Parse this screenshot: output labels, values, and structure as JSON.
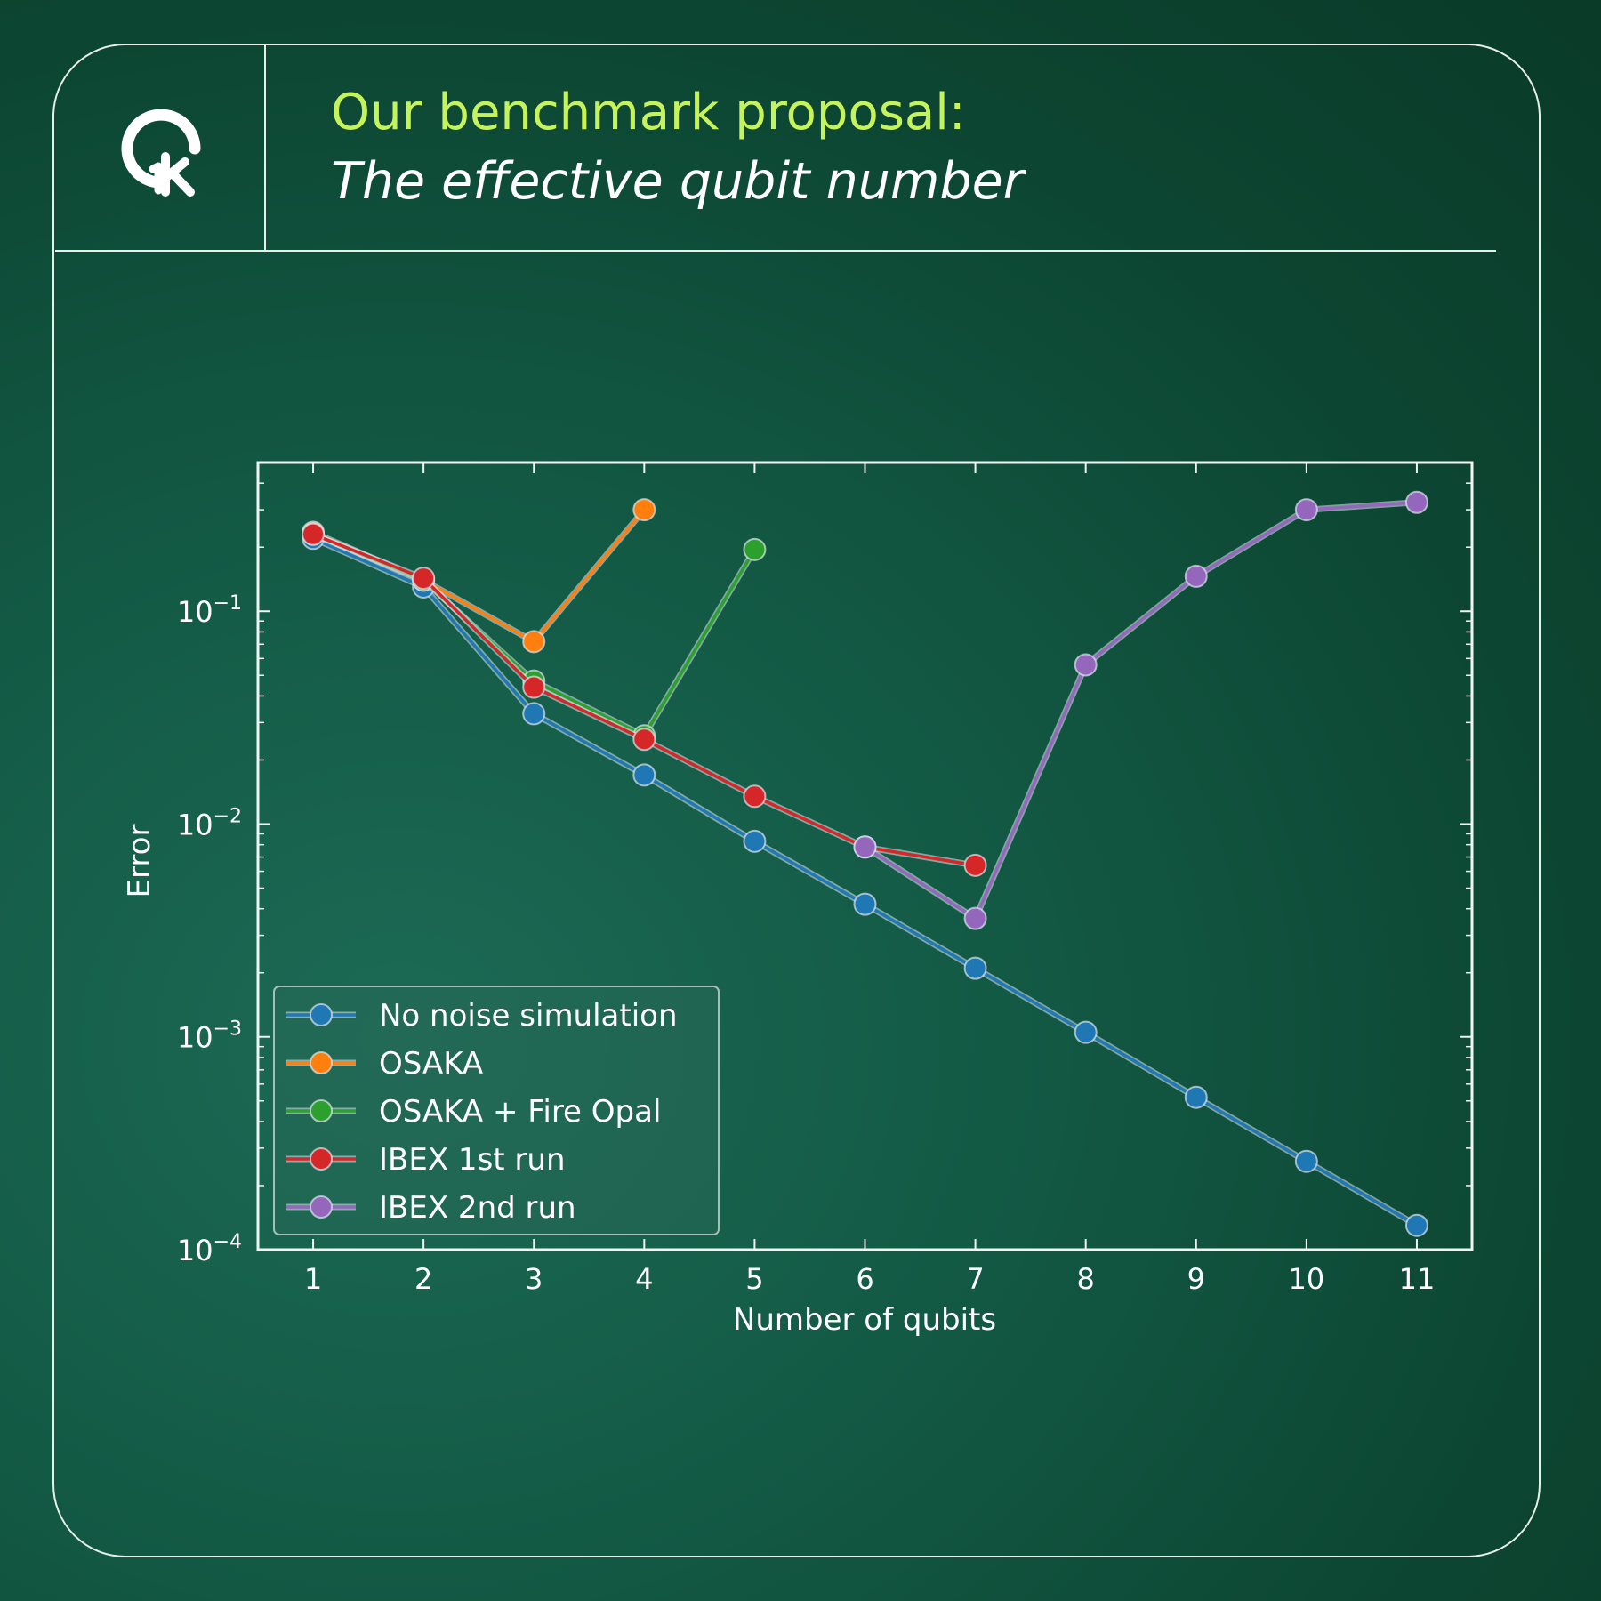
{
  "header": {
    "title": "Our benchmark proposal:",
    "subtitle": "The effective qubit number",
    "logo_icon": "qk-logo-icon"
  },
  "colors": {
    "title": "#c6f25a",
    "frame": "#e8efe9"
  },
  "chart_data": {
    "type": "line",
    "xlabel": "Number of qubits",
    "ylabel": "Error",
    "yscale": "log",
    "xlim": [
      0.5,
      11.5
    ],
    "ylim": [
      0.0001,
      0.5
    ],
    "x_ticks": [
      1,
      2,
      3,
      4,
      5,
      6,
      7,
      8,
      9,
      10,
      11
    ],
    "y_ticks": [
      {
        "value": 0.1,
        "base": "10",
        "exp": "−1"
      },
      {
        "value": 0.01,
        "base": "10",
        "exp": "−2"
      },
      {
        "value": 0.001,
        "base": "10",
        "exp": "−3"
      },
      {
        "value": 0.0001,
        "base": "10",
        "exp": "−4"
      }
    ],
    "legend_position": "lower-left",
    "series": [
      {
        "name": "No noise simulation",
        "color": "#1f77b4",
        "x": [
          1,
          2,
          3,
          4,
          5,
          6,
          7,
          8,
          9,
          10,
          11
        ],
        "y": [
          0.22,
          0.13,
          0.033,
          0.017,
          0.0083,
          0.0042,
          0.0021,
          0.00105,
          0.00052,
          0.00026,
          0.00013
        ]
      },
      {
        "name": "OSAKA",
        "color": "#ff7f0e",
        "x": [
          1,
          2,
          3,
          4
        ],
        "y": [
          0.235,
          0.14,
          0.072,
          0.3
        ]
      },
      {
        "name": "OSAKA + Fire Opal",
        "color": "#2ca02c",
        "x": [
          1,
          2,
          3,
          4,
          5
        ],
        "y": [
          0.23,
          0.14,
          0.047,
          0.026,
          0.195
        ]
      },
      {
        "name": "IBEX 1st run",
        "color": "#d62728",
        "x": [
          1,
          2,
          3,
          4,
          5,
          6,
          7
        ],
        "y": [
          0.23,
          0.143,
          0.044,
          0.025,
          0.0135,
          0.0078,
          0.0064
        ]
      },
      {
        "name": "IBEX 2nd run",
        "color": "#9467bd",
        "x": [
          6,
          7,
          8,
          9,
          10,
          11
        ],
        "y": [
          0.0078,
          0.0036,
          0.056,
          0.146,
          0.3,
          0.325
        ]
      }
    ]
  }
}
